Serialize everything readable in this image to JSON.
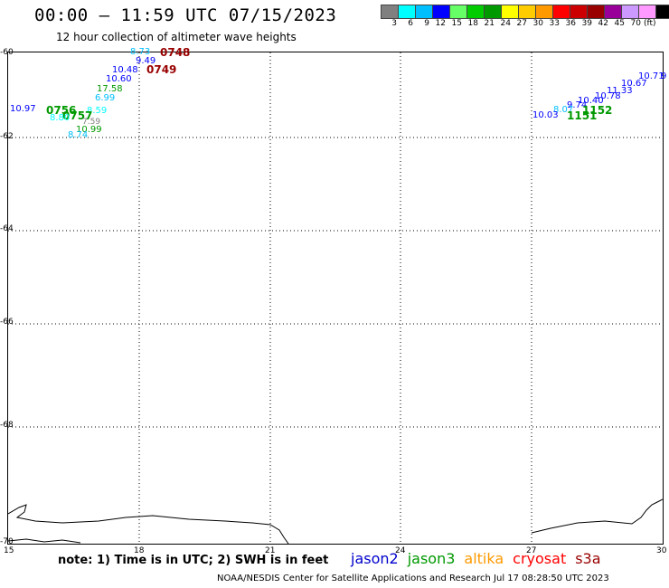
{
  "header": {
    "title": "00:00 – 11:59 UTC 07/15/2023",
    "subtitle": "12 hour collection of altimeter wave heights"
  },
  "legend": {
    "colors": [
      "#808080",
      "#00ffff",
      "#00bfff",
      "#0000ff",
      "#66ff66",
      "#00cc00",
      "#009900",
      "#ffff00",
      "#ffcc00",
      "#ff9900",
      "#ff0000",
      "#cc0000",
      "#990000",
      "#990099",
      "#cc99ff",
      "#ff99ff",
      "#000000"
    ],
    "labels": [
      "3",
      "6",
      "9",
      "12",
      "15",
      "18",
      "21",
      "24",
      "27",
      "30",
      "33",
      "36",
      "39",
      "42",
      "45",
      "70",
      "(ft)"
    ]
  },
  "axes": {
    "y_labels": [
      "-60",
      "-62",
      "-64",
      "-66",
      "-68",
      "-70"
    ],
    "x_labels": [
      "15",
      "18",
      "21",
      "24",
      "27",
      "30"
    ]
  },
  "observations": {
    "west_cluster": [
      {
        "t": "8.73",
        "c": "#00bfff"
      },
      {
        "t": "0748",
        "c": "#990000"
      },
      {
        "t": "9.49",
        "c": "#0000ff"
      },
      {
        "t": "10.48",
        "c": "#0000ff"
      },
      {
        "t": "0749",
        "c": "#990000"
      },
      {
        "t": "10.60",
        "c": "#0000ff"
      },
      {
        "t": "17.58",
        "c": "#009900"
      },
      {
        "t": "6.99",
        "c": "#00bfff"
      },
      {
        "t": "10.97",
        "c": "#0000ff"
      },
      {
        "t": "0756",
        "c": "#009900"
      },
      {
        "t": "8.59",
        "c": "#00ffff"
      },
      {
        "t": "0757",
        "c": "#009900"
      },
      {
        "t": "8.80",
        "c": "#00ffff"
      },
      {
        "t": "7.59",
        "c": "#808080"
      },
      {
        "t": "10.99",
        "c": "#009900"
      },
      {
        "t": "8.74",
        "c": "#00bfff"
      }
    ],
    "east_cluster": [
      {
        "t": "10.71",
        "c": "#0000ff"
      },
      {
        "t": "9",
        "c": "#0000ff"
      },
      {
        "t": "10.67",
        "c": "#0000ff"
      },
      {
        "t": "11.33",
        "c": "#0000ff"
      },
      {
        "t": "10.78",
        "c": "#0000ff"
      },
      {
        "t": "10.40",
        "c": "#0000ff"
      },
      {
        "t": "9.74",
        "c": "#0000ff"
      },
      {
        "t": "8.07",
        "c": "#00bfff"
      },
      {
        "t": "10.03",
        "c": "#0000ff"
      },
      {
        "t": "1152",
        "c": "#009900"
      },
      {
        "t": "1151",
        "c": "#009900"
      }
    ]
  },
  "note": "note: 1) Time is in UTC; 2) SWH is in feet",
  "satellites": [
    {
      "name": "jason2",
      "color": "#0000cc"
    },
    {
      "name": "jason3",
      "color": "#009900"
    },
    {
      "name": "altika",
      "color": "#ff9900"
    },
    {
      "name": "cryosat",
      "color": "#ff0000"
    },
    {
      "name": "s3a",
      "color": "#990000"
    }
  ],
  "footer": "NOAA/NESDIS Center for Satellite Applications and Research   Jul 17 08:28:50 UTC 2023"
}
